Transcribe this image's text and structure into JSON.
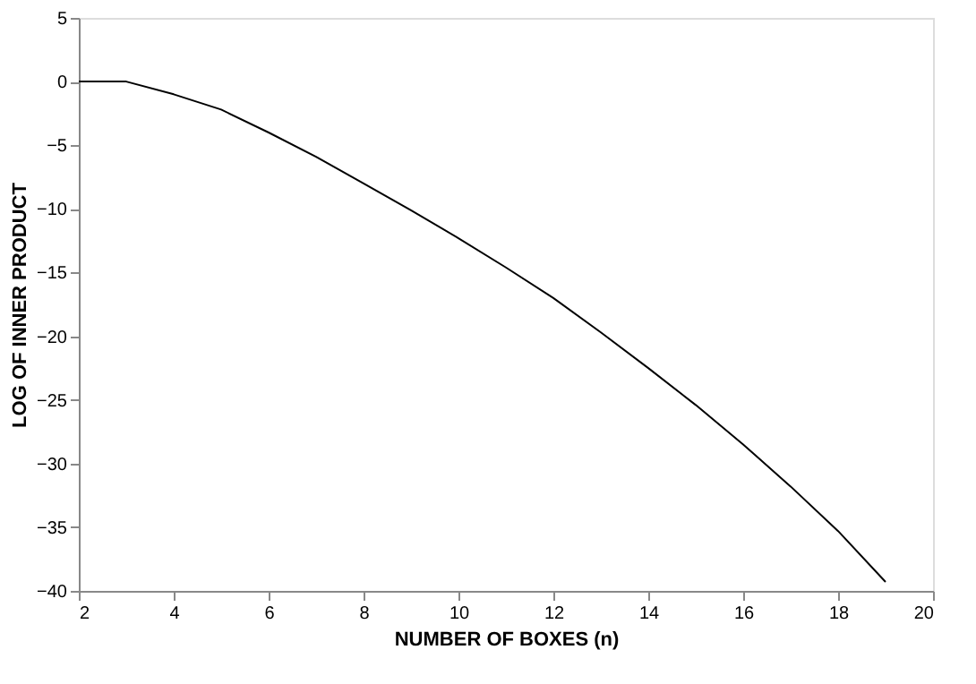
{
  "chart_data": {
    "type": "line",
    "xlabel": "NUMBER OF BOXES (n)",
    "ylabel": "LOG OF INNER PRODUCT",
    "x": [
      2,
      3,
      4,
      5,
      6,
      7,
      8,
      9,
      10,
      11,
      12,
      13,
      14,
      15,
      16,
      17,
      18,
      19
    ],
    "series": [
      {
        "color": "#000000",
        "values": [
          0,
          0,
          -1,
          -2.2,
          -4,
          -5.9,
          -8,
          -10.1,
          -12.3,
          -14.6,
          -17,
          -19.7,
          -22.5,
          -25.4,
          -28.5,
          -31.8,
          -35.3,
          -39.3
        ]
      }
    ],
    "xlim": [
      2,
      20
    ],
    "xticks": [
      2,
      4,
      6,
      8,
      10,
      12,
      14,
      16,
      18,
      20
    ],
    "ylim": [
      -40,
      5
    ],
    "yticks": [
      -40,
      -35,
      -30,
      -25,
      -20,
      -15,
      -10,
      -5,
      0,
      5
    ],
    "grid": false,
    "marker": "none",
    "line_style": "solid"
  }
}
